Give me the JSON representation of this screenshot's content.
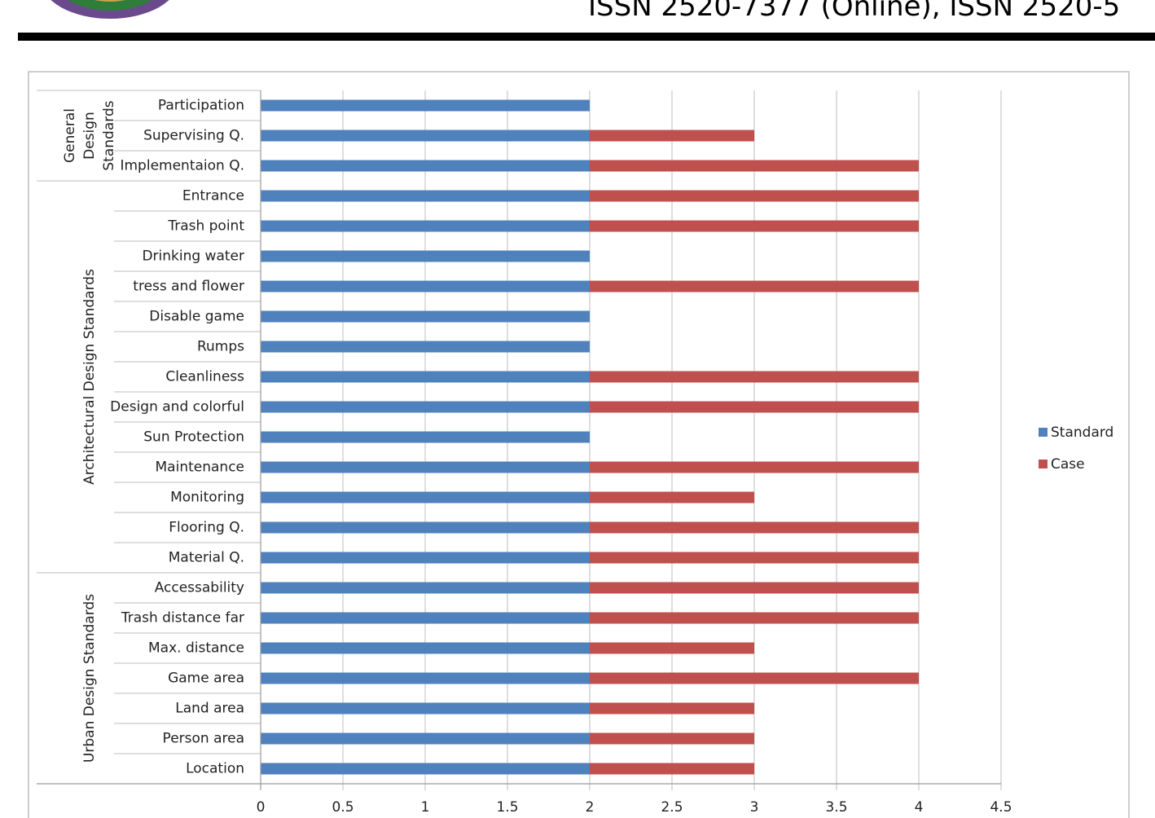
{
  "header": {
    "issn": "ISSN 2520-7377 (Online), ISSN 2520-5"
  },
  "colors": {
    "standard": "#4f81bd",
    "case": "#c0504d"
  },
  "chart_data": {
    "type": "bar",
    "orientation": "horizontal",
    "stacked": true,
    "title": "",
    "xlabel": "",
    "ylabel": "",
    "xlim": [
      0,
      4.5
    ],
    "xticks": [
      "0",
      "0.5",
      "1",
      "1.5",
      "2",
      "2.5",
      "3",
      "3.5",
      "4",
      "4.5"
    ],
    "grid": true,
    "legend_position": "right",
    "groups": [
      {
        "label": "General Design Standards",
        "label_lines": [
          "General",
          "Design",
          "Standards"
        ],
        "count": 3
      },
      {
        "label": "Architectural Design Standards",
        "label_lines": [
          "Architectural Design Standards"
        ],
        "count": 13
      },
      {
        "label": "Urban Design Standards",
        "label_lines": [
          "Urban Design Standards"
        ],
        "count": 7
      }
    ],
    "categories": [
      "Participation",
      "Supervising Q.",
      "Implementaion Q.",
      "Entrance",
      "Trash point",
      "Drinking water",
      "tress and flower",
      "Disable game",
      "Rumps",
      "Cleanliness",
      "Design and colorful",
      "Sun Protection",
      "Maintenance",
      "Monitoring",
      "Flooring Q.",
      "Material Q.",
      "Accessability",
      "Trash distance far",
      "Max. distance",
      "Game area",
      "Land area",
      "Person area",
      "Location"
    ],
    "series": [
      {
        "name": "Standard",
        "values": [
          2,
          2,
          2,
          2,
          2,
          2,
          2,
          2,
          2,
          2,
          2,
          2,
          2,
          2,
          2,
          2,
          2,
          2,
          2,
          2,
          2,
          2,
          2
        ]
      },
      {
        "name": "Case",
        "values": [
          0,
          1,
          2,
          2,
          2,
          0,
          2,
          0,
          0,
          2,
          2,
          0,
          2,
          1,
          2,
          2,
          2,
          2,
          1,
          2,
          1,
          1,
          1
        ]
      }
    ]
  }
}
